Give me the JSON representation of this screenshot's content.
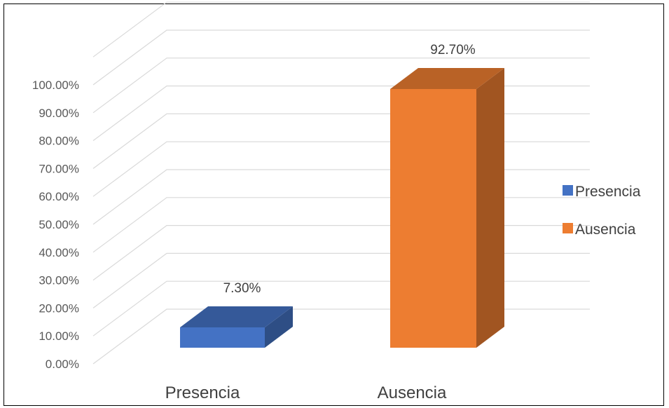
{
  "chart_data": {
    "type": "bar",
    "categories": [
      "Presencia",
      "Ausencia"
    ],
    "values": [
      7.3,
      92.7
    ],
    "data_labels": [
      "7.30%",
      "92.70%"
    ],
    "colors": [
      "#4472C4",
      "#ED7D31"
    ],
    "ylim": [
      0,
      100
    ],
    "yticks": [
      "0.00%",
      "10.00%",
      "20.00%",
      "30.00%",
      "40.00%",
      "50.00%",
      "60.00%",
      "70.00%",
      "80.00%",
      "90.00%",
      "100.00%"
    ],
    "legend": {
      "position": "right",
      "entries": [
        {
          "label": "Presencia",
          "color": "#4472C4"
        },
        {
          "label": "Ausencia",
          "color": "#ED7D31"
        }
      ]
    },
    "grid": true,
    "style": "3d-column",
    "title": "",
    "xlabel": "",
    "ylabel": ""
  }
}
